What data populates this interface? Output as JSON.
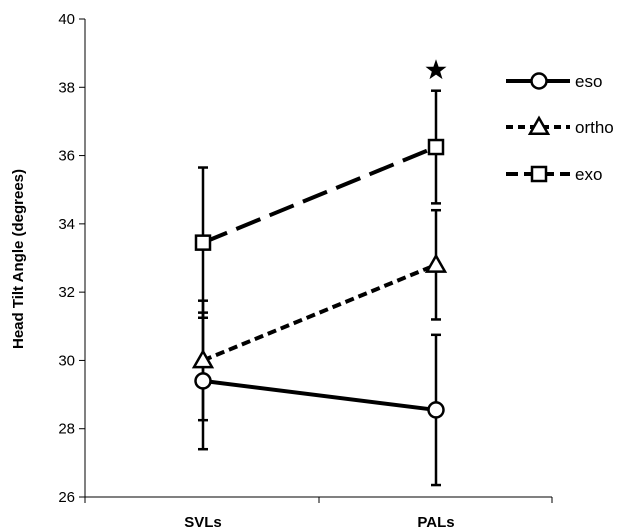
{
  "chart_data": {
    "type": "line",
    "title": "",
    "xlabel": "",
    "ylabel": "Head Tilt Angle (degrees)",
    "ylim": [
      26,
      40
    ],
    "yticks": [
      "26",
      "28",
      "30",
      "32",
      "34",
      "36",
      "38",
      "40"
    ],
    "categories": [
      "SVLs",
      "PALs"
    ],
    "series": [
      {
        "name": "eso",
        "marker": "circle",
        "dash": "solid",
        "values": [
          29.4,
          28.55
        ],
        "error": [
          2.0,
          2.2
        ]
      },
      {
        "name": "ortho",
        "marker": "triangle",
        "dash": "short-dash",
        "values": [
          30.0,
          32.8
        ],
        "error": [
          1.75,
          1.6
        ]
      },
      {
        "name": "exo",
        "marker": "square",
        "dash": "long-dash",
        "values": [
          33.45,
          36.25
        ],
        "error": [
          2.2,
          1.65
        ]
      }
    ],
    "annotations": [
      {
        "symbol": "star",
        "category": "PALs",
        "y": 38.5
      }
    ],
    "grid": false,
    "legend_position": "right"
  }
}
